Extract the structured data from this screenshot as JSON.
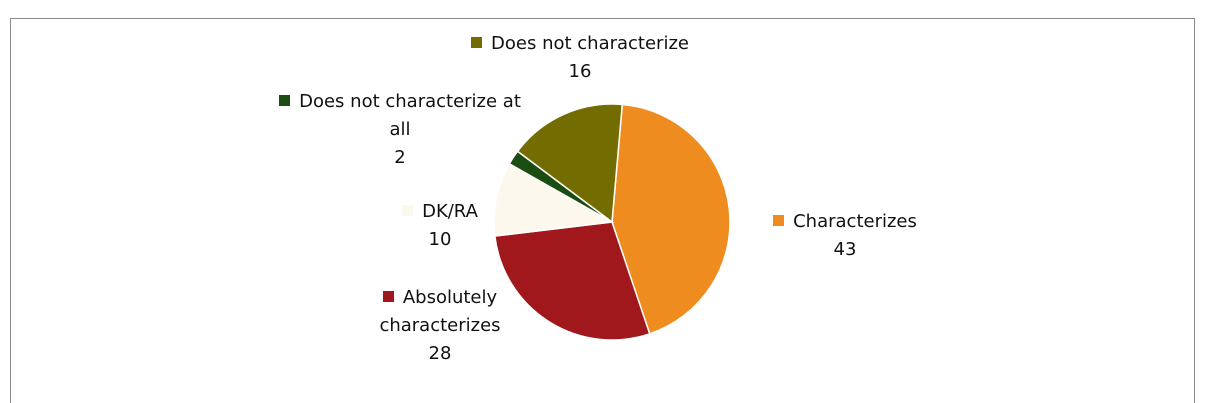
{
  "chart_data": {
    "type": "pie",
    "categories": [
      "Characterizes",
      "Absolutely characterizes",
      "DK/RA",
      "Does not characterize at all",
      "Does not characterize"
    ],
    "values": [
      43,
      28,
      10,
      2,
      16
    ],
    "colors": [
      "#ee8c1f",
      "#a0171c",
      "#fdf8ee",
      "#1b4d13",
      "#736c00"
    ]
  }
}
